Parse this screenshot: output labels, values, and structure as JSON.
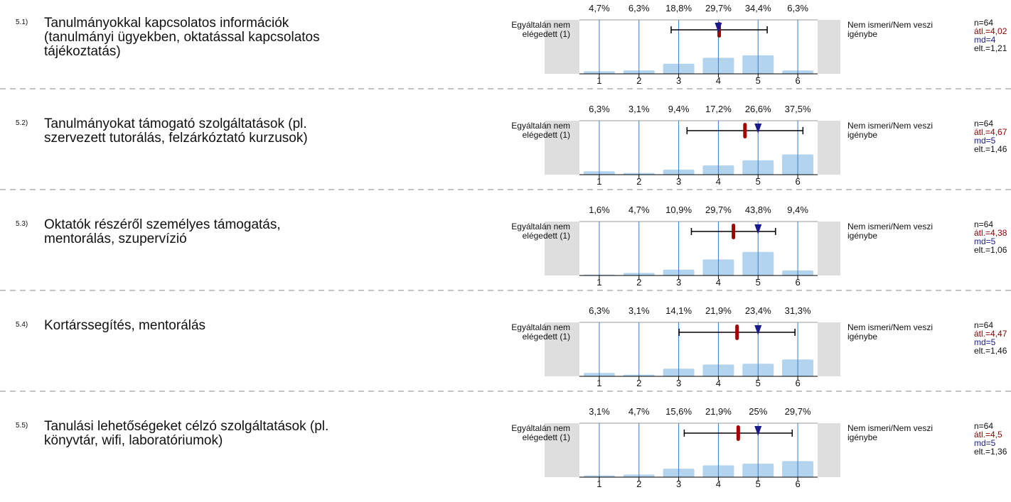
{
  "chart_data": [
    {
      "type": "bar",
      "number": "5.1)",
      "title": [
        "Tanulmányokkal kapcsolatos információk",
        "(tanulmányi ügyekben, oktatással kapcsolatos",
        "tájékoztatás)"
      ],
      "left_label": [
        "Egyáltalán nem",
        "elégedett (1)"
      ],
      "right_label": [
        "Nem ismeri/Nem veszi",
        "igénybe"
      ],
      "categories": [
        "1",
        "2",
        "3",
        "4",
        "5",
        "6"
      ],
      "values": [
        4.7,
        6.3,
        18.8,
        29.7,
        34.4,
        6.3
      ],
      "value_labels": [
        "4,7%",
        "6,3%",
        "18,8%",
        "29,7%",
        "34,4%",
        "6,3%"
      ],
      "color": "#b3d4ee",
      "xlim": [
        0.5,
        6.5
      ],
      "ylim": [
        0,
        100
      ],
      "stats": {
        "n": {
          "value": 64,
          "label": "n=64"
        },
        "mean": {
          "value": 4.02,
          "label": "átl.=4,02"
        },
        "median": {
          "value": 4,
          "label": "md=4"
        },
        "sd": {
          "value": 1.21,
          "label": "elt.=1,21"
        }
      }
    },
    {
      "type": "bar",
      "number": "5.2)",
      "title": [
        "Tanulmányokat támogató szolgáltatások (pl.",
        "szervezett tutorálás, felzárkóztató kurzusok)"
      ],
      "left_label": [
        "Egyáltalán nem",
        "elégedett (1)"
      ],
      "right_label": [
        "Nem ismeri/Nem veszi",
        "igénybe"
      ],
      "categories": [
        "1",
        "2",
        "3",
        "4",
        "5",
        "6"
      ],
      "values": [
        6.3,
        3.1,
        9.4,
        17.2,
        26.6,
        37.5
      ],
      "value_labels": [
        "6,3%",
        "3,1%",
        "9,4%",
        "17,2%",
        "26,6%",
        "37,5%"
      ],
      "color": "#b3d4ee",
      "xlim": [
        0.5,
        6.5
      ],
      "ylim": [
        0,
        100
      ],
      "stats": {
        "n": {
          "value": 64,
          "label": "n=64"
        },
        "mean": {
          "value": 4.67,
          "label": "átl.=4,67"
        },
        "median": {
          "value": 5,
          "label": "md=5"
        },
        "sd": {
          "value": 1.46,
          "label": "elt.=1,46"
        }
      }
    },
    {
      "type": "bar",
      "number": "5.3)",
      "title": [
        "Oktatók részéről személyes támogatás,",
        "mentorálás, szupervízió"
      ],
      "left_label": [
        "Egyáltalán nem",
        "elégedett (1)"
      ],
      "right_label": [
        "Nem ismeri/Nem veszi",
        "igénybe"
      ],
      "categories": [
        "1",
        "2",
        "3",
        "4",
        "5",
        "6"
      ],
      "values": [
        1.6,
        4.7,
        10.9,
        29.7,
        43.8,
        9.4
      ],
      "value_labels": [
        "1,6%",
        "4,7%",
        "10,9%",
        "29,7%",
        "43,8%",
        "9,4%"
      ],
      "color": "#b3d4ee",
      "xlim": [
        0.5,
        6.5
      ],
      "ylim": [
        0,
        100
      ],
      "stats": {
        "n": {
          "value": 64,
          "label": "n=64"
        },
        "mean": {
          "value": 4.38,
          "label": "átl.=4,38"
        },
        "median": {
          "value": 5,
          "label": "md=5"
        },
        "sd": {
          "value": 1.06,
          "label": "elt.=1,06"
        }
      }
    },
    {
      "type": "bar",
      "number": "5.4)",
      "title": [
        "Kortárssegítés, mentorálás"
      ],
      "left_label": [
        "Egyáltalán nem",
        "elégedett (1)"
      ],
      "right_label": [
        "Nem ismeri/Nem veszi",
        "igénybe"
      ],
      "categories": [
        "1",
        "2",
        "3",
        "4",
        "5",
        "6"
      ],
      "values": [
        6.3,
        3.1,
        14.1,
        21.9,
        23.4,
        31.3
      ],
      "value_labels": [
        "6,3%",
        "3,1%",
        "14,1%",
        "21,9%",
        "23,4%",
        "31,3%"
      ],
      "color": "#b3d4ee",
      "xlim": [
        0.5,
        6.5
      ],
      "ylim": [
        0,
        100
      ],
      "stats": {
        "n": {
          "value": 64,
          "label": "n=64"
        },
        "mean": {
          "value": 4.47,
          "label": "átl.=4,47"
        },
        "median": {
          "value": 5,
          "label": "md=5"
        },
        "sd": {
          "value": 1.46,
          "label": "elt.=1,46"
        }
      }
    },
    {
      "type": "bar",
      "number": "5.5)",
      "title": [
        "Tanulási lehetőségeket célzó szolgáltatások (pl.",
        "könyvtár, wifi, laboratóriumok)"
      ],
      "left_label": [
        "Egyáltalán nem",
        "elégedett (1)"
      ],
      "right_label": [
        "Nem ismeri/Nem veszi",
        "igénybe"
      ],
      "categories": [
        "1",
        "2",
        "3",
        "4",
        "5",
        "6"
      ],
      "values": [
        3.1,
        4.7,
        15.6,
        21.9,
        25,
        29.7
      ],
      "value_labels": [
        "3,1%",
        "4,7%",
        "15,6%",
        "21,9%",
        "25%",
        "29,7%"
      ],
      "color": "#b3d4ee",
      "xlim": [
        0.5,
        6.5
      ],
      "ylim": [
        0,
        100
      ],
      "stats": {
        "n": {
          "value": 64,
          "label": "n=64"
        },
        "mean": {
          "value": 4.5,
          "label": "átl.=4,5"
        },
        "median": {
          "value": 5,
          "label": "md=5"
        },
        "sd": {
          "value": 1.36,
          "label": "elt.=1,36"
        }
      }
    }
  ]
}
